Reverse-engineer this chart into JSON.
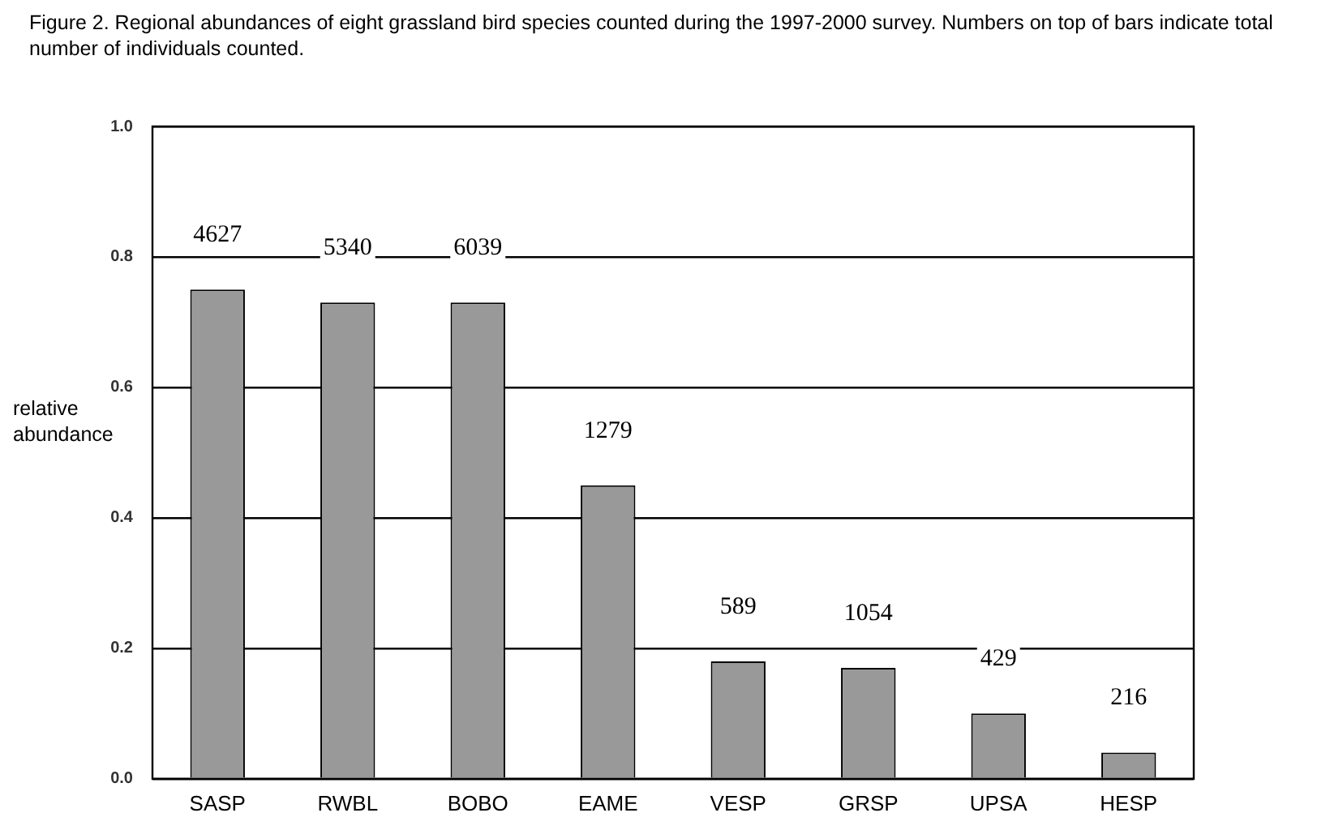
{
  "chart_data": {
    "type": "bar",
    "title": "Figure 2.  Regional abundances of eight grassland bird species counted during the 1997-2000 survey.  Numbers on top of bars indicate total number of individuals counted.",
    "ylabel": "relative abundance",
    "categories": [
      "SASP",
      "RWBL",
      "BOBO",
      "EAME",
      "VESP",
      "GRSP",
      "UPSA",
      "HESP"
    ],
    "values": [
      0.75,
      0.73,
      0.73,
      0.45,
      0.18,
      0.17,
      0.1,
      0.04
    ],
    "annotations": [
      {
        "text": "4627",
        "x": "SASP",
        "y": 0.75
      },
      {
        "text": "5340",
        "x": "RWBL",
        "y": 0.73
      },
      {
        "text": "6039",
        "x": "BOBO",
        "y": 0.73
      },
      {
        "text": "1279",
        "x": "EAME",
        "y": 0.45
      },
      {
        "text": "589",
        "x": "VESP",
        "y": 0.18
      },
      {
        "text": "1054",
        "x": "GRSP",
        "y": 0.17
      },
      {
        "text": "429",
        "x": "UPSA",
        "y": 0.1
      },
      {
        "text": "216",
        "x": "HESP",
        "y": 0.04
      }
    ],
    "color": "#999999",
    "ylim": [
      0,
      1
    ],
    "yticks": [
      {
        "value": 0,
        "label": "0.0"
      },
      {
        "value": 0.2,
        "label": "0.2"
      },
      {
        "value": 0.4,
        "label": "0.4"
      },
      {
        "value": 0.6,
        "label": "0.6"
      },
      {
        "value": 0.8,
        "label": "0.8"
      },
      {
        "value": 1,
        "label": "1.0"
      }
    ],
    "grid": "y",
    "legend": false
  }
}
